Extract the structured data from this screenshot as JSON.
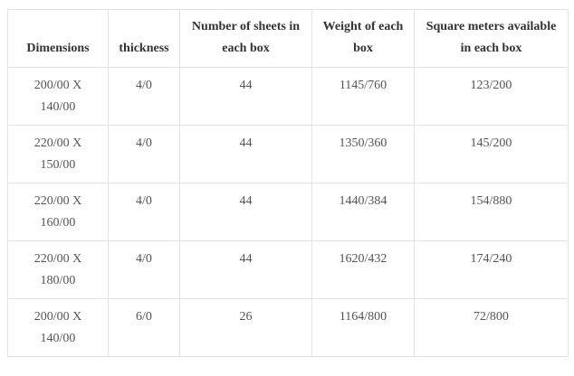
{
  "table": {
    "header": [
      "Dimensions",
      "thickness",
      "Number of sheets in each box",
      "Weight of each box",
      "Square meters available in each box"
    ],
    "rows": [
      [
        "200/00 X 140/00",
        "4/0",
        "44",
        "1145/760",
        "123/200"
      ],
      [
        "220/00 X 150/00",
        "4/0",
        "44",
        "1350/360",
        "145/200"
      ],
      [
        "220/00 X 160/00",
        "4/0",
        "44",
        "1440/384",
        "154/880"
      ],
      [
        "220/00 X 180/00",
        "4/0",
        "44",
        "1620/432",
        "174/240"
      ],
      [
        "200/00 X 140/00",
        "6/0",
        "26",
        "1164/800",
        "72/800"
      ]
    ]
  }
}
